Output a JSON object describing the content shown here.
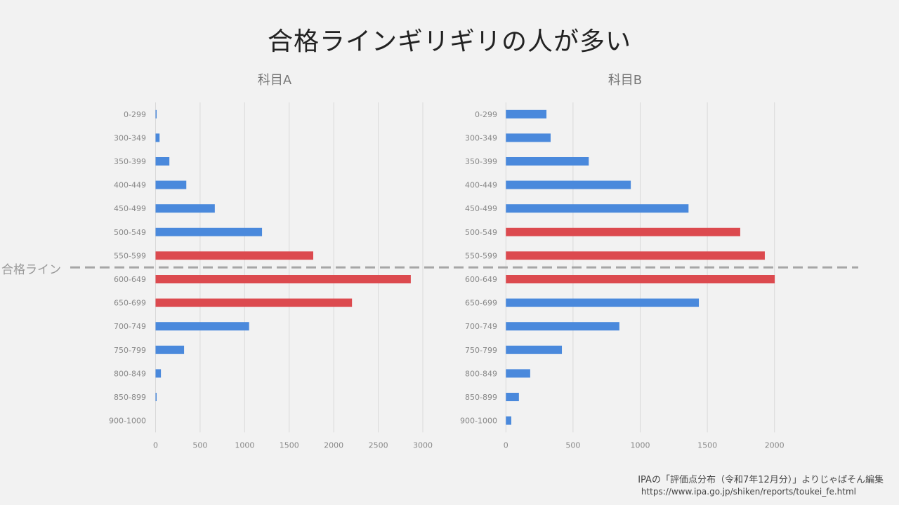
{
  "title": "合格ラインギリギリの人が多い",
  "pass_line_label": "合格ライン",
  "source": {
    "line1": "IPAの「評価点分布（令和7年12月分）」よりじゃぱそん編集",
    "line2": "https://www.ipa.go.jp/shiken/reports/toukei_fe.html"
  },
  "colors": {
    "normal": "#4a89dc",
    "highlight": "#dc4a4f",
    "pass_line": "#a6a6a6",
    "grid": "#d9d9d9"
  },
  "chart_data": [
    {
      "type": "bar",
      "orientation": "horizontal",
      "title": "科目A",
      "categories": [
        "0-299",
        "300-349",
        "350-399",
        "400-449",
        "450-499",
        "500-549",
        "550-599",
        "600-649",
        "650-699",
        "700-749",
        "750-799",
        "800-849",
        "850-899",
        "900-1000"
      ],
      "values": [
        10,
        45,
        155,
        345,
        665,
        1195,
        1770,
        2865,
        2205,
        1050,
        320,
        60,
        10,
        0
      ],
      "highlighted": [
        "550-599",
        "600-649",
        "650-699"
      ],
      "xlim": [
        0,
        3000
      ],
      "xticks": [
        0,
        500,
        1000,
        1500,
        2000,
        2500,
        3000
      ],
      "xlabel": "",
      "ylabel": "",
      "grid": true,
      "pass_line_between": [
        "550-599",
        "600-649"
      ]
    },
    {
      "type": "bar",
      "orientation": "horizontal",
      "title": "科目B",
      "categories": [
        "0-299",
        "300-349",
        "350-399",
        "400-449",
        "450-499",
        "500-549",
        "550-599",
        "600-649",
        "650-699",
        "700-749",
        "750-799",
        "800-849",
        "850-899",
        "900-1000"
      ],
      "values": [
        302,
        333,
        617,
        930,
        1360,
        1745,
        1928,
        2002,
        1437,
        845,
        417,
        181,
        97,
        40
      ],
      "highlighted": [
        "500-549",
        "550-599",
        "600-649"
      ],
      "xlim": [
        0,
        2000
      ],
      "xticks": [
        0,
        500,
        1000,
        1500,
        2000
      ],
      "xlabel": "",
      "ylabel": "",
      "grid": true,
      "pass_line_between": [
        "550-599",
        "600-649"
      ]
    }
  ]
}
